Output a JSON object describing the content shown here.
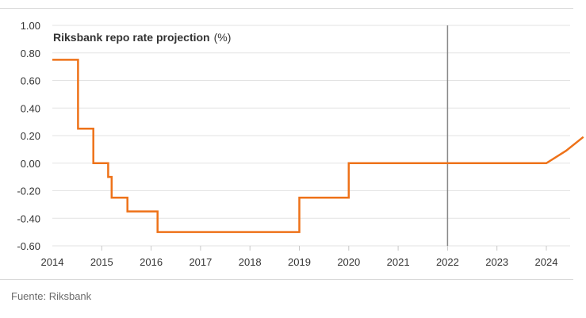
{
  "chart_data": {
    "type": "line",
    "title": "Riksbank repo rate projection",
    "title_unit": "(%)",
    "xlabel": "",
    "ylabel": "",
    "ylim": [
      -0.6,
      1.0
    ],
    "xlim": [
      2014,
      2024.8
    ],
    "yticks": [
      1.0,
      0.8,
      0.6,
      0.4,
      0.2,
      0.0,
      -0.2,
      -0.4,
      -0.6
    ],
    "ytick_labels": [
      "1.00",
      "0.80",
      "0.60",
      "0.40",
      "0.20",
      "0.00",
      "-0.20",
      "-0.40",
      "-0.60"
    ],
    "xticks": [
      2014,
      2015,
      2016,
      2017,
      2018,
      2019,
      2020,
      2021,
      2022,
      2023,
      2024
    ],
    "xtick_labels": [
      "2014",
      "2015",
      "2016",
      "2017",
      "2018",
      "2019",
      "2020",
      "2021",
      "2022",
      "2023",
      "2024"
    ],
    "grid": true,
    "legend": "none",
    "vertical_marker_x": 2022,
    "colors": {
      "line": "#ee7219",
      "marker": "#888888",
      "grid": "#e3e3e3"
    },
    "series": [
      {
        "x": [
          2014.0,
          2014.52,
          2014.52,
          2014.83,
          2014.83,
          2015.13,
          2015.13,
          2015.2,
          2015.2,
          2015.52,
          2015.52,
          2016.13,
          2016.13,
          2019.0,
          2019.0,
          2020.0,
          2020.0,
          2024.0,
          2024.4,
          2024.75
        ],
        "y": [
          0.75,
          0.75,
          0.25,
          0.25,
          0.0,
          0.0,
          -0.1,
          -0.1,
          -0.25,
          -0.25,
          -0.35,
          -0.35,
          -0.5,
          -0.5,
          -0.25,
          -0.25,
          0.0,
          0.0,
          0.09,
          0.19
        ]
      }
    ]
  },
  "footer": {
    "source": "Fuente: Riksbank"
  }
}
